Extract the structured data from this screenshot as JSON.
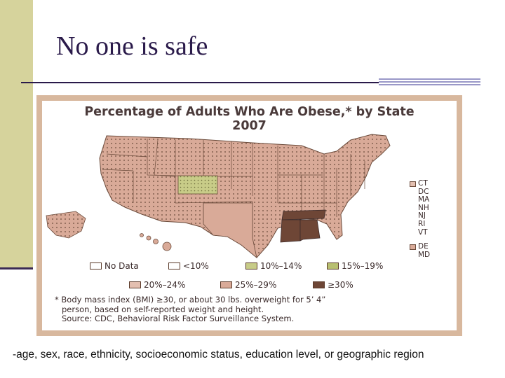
{
  "slide": {
    "title": "No one is safe",
    "bottom_text": "-age, sex, race, ethnicity, socioeconomic status, education level, or geographic region"
  },
  "map": {
    "title_line1": "Percentage of Adults Who Are Obese,* by State",
    "title_line2": "2007",
    "colors": {
      "no_data": "#ffffff",
      "lt10": "#ffffff",
      "p10_14": "#c8cc88",
      "p15_19": "#b8bf70",
      "p20_24": "#e3bfb0",
      "p25_29": "#d9aa98",
      "gte30": "#6e4636"
    },
    "northeast_labels": {
      "group_a": [
        "CT",
        "DC",
        "MA",
        "NH",
        "NJ",
        "RI",
        "VT"
      ],
      "group_b": [
        "DE",
        "MD"
      ]
    },
    "legend": {
      "no_data": "No Data",
      "lt10": "<10%",
      "p10_14": "10%–14%",
      "p15_19": "15%–19%",
      "p20_24": "20%–24%",
      "p25_29": "25%–29%",
      "gte30": "≥30%"
    },
    "footnote": [
      "* Body mass index (BMI) ≥30, or about 30 lbs. overweight for 5’ 4”",
      "person, based on self-reported weight and height.",
      "Source: CDC, Behavioral Risk Factor Surveillance System."
    ]
  }
}
